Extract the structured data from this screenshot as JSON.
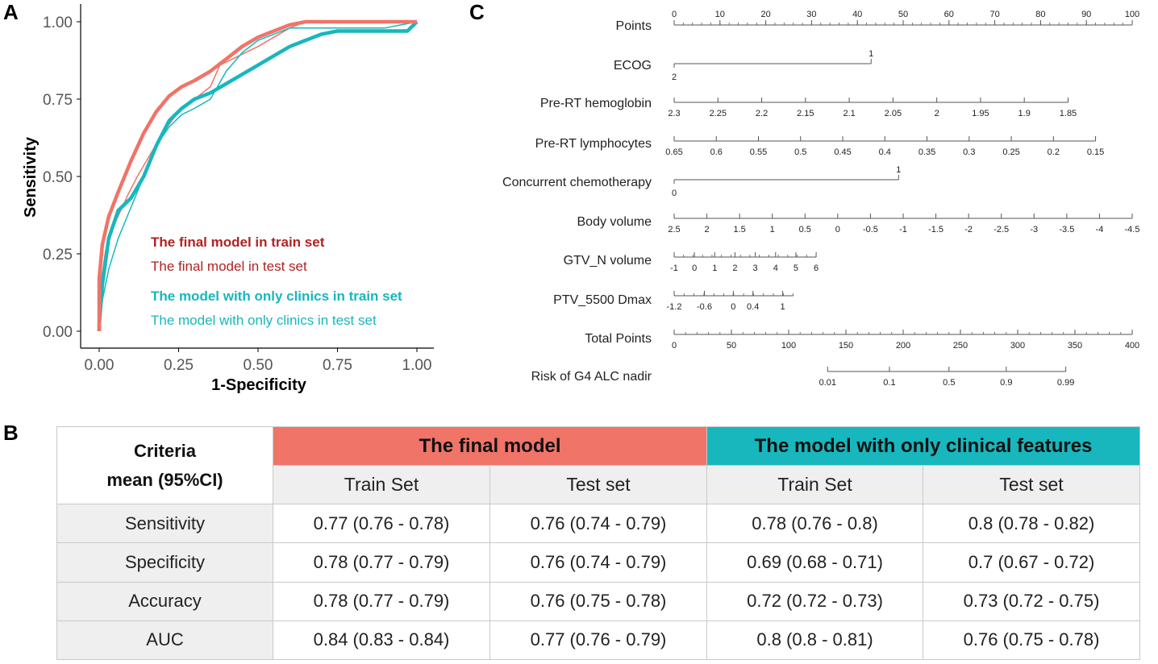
{
  "panel_labels": {
    "a": "A",
    "b": "B",
    "c": "C"
  },
  "colors": {
    "final": "#f07468",
    "clinical": "#17b7bd",
    "final_text": "#b22222",
    "clin_text": "#17b7bd",
    "final_header_bg": "#f07468",
    "clin_header_bg": "#17b7bd"
  },
  "chart_data": [
    {
      "type": "line",
      "title": "",
      "xlabel": "1-Specificity",
      "ylabel": "Sensitivity",
      "xlim": [
        0,
        1
      ],
      "ylim": [
        0,
        1
      ],
      "xticks": [
        "0.00",
        "0.25",
        "0.50",
        "0.75",
        "1.00"
      ],
      "yticks": [
        "0.00",
        "0.25",
        "0.50",
        "0.75",
        "1.00"
      ],
      "legend": [
        {
          "label": "The final model in train set",
          "color": "#b22222",
          "bold": true
        },
        {
          "label": "The final model  in test set",
          "color": "#b22222",
          "bold": false
        },
        {
          "label": "The model with only clinics in train set",
          "color": "#17b7bd",
          "bold": true
        },
        {
          "label": "The model with only clinics in test set",
          "color": "#17b7bd",
          "bold": false
        }
      ],
      "series": [
        {
          "name": "The final model in train set",
          "color": "#f07468",
          "weight": "thick",
          "x": [
            0,
            0,
            0.01,
            0.03,
            0.06,
            0.1,
            0.14,
            0.18,
            0.22,
            0.26,
            0.3,
            0.35,
            0.4,
            0.45,
            0.5,
            0.55,
            0.6,
            0.65,
            0.7,
            0.8,
            0.9,
            1.0
          ],
          "y": [
            0,
            0.17,
            0.28,
            0.37,
            0.45,
            0.55,
            0.64,
            0.71,
            0.76,
            0.79,
            0.81,
            0.84,
            0.88,
            0.92,
            0.95,
            0.97,
            0.99,
            1.0,
            1.0,
            1.0,
            1.0,
            1.0
          ]
        },
        {
          "name": "The final model  in test set",
          "color": "#f07468",
          "weight": "thin",
          "x": [
            0,
            0,
            0.02,
            0.05,
            0.09,
            0.12,
            0.16,
            0.2,
            0.25,
            0.3,
            0.35,
            0.38,
            0.42,
            0.5,
            0.55,
            0.6,
            0.65,
            0.7,
            0.8,
            0.9,
            1.0
          ],
          "y": [
            0,
            0.12,
            0.26,
            0.35,
            0.44,
            0.5,
            0.57,
            0.64,
            0.71,
            0.75,
            0.79,
            0.86,
            0.88,
            0.92,
            0.95,
            0.98,
            1.0,
            1.0,
            1.0,
            1.0,
            1.0
          ]
        },
        {
          "name": "The model with only clinics in train set",
          "color": "#17b7bd",
          "weight": "thick",
          "x": [
            0,
            0,
            0.01,
            0.03,
            0.06,
            0.1,
            0.14,
            0.18,
            0.22,
            0.26,
            0.3,
            0.35,
            0.4,
            0.45,
            0.5,
            0.55,
            0.6,
            0.65,
            0.7,
            0.75,
            0.8,
            0.9,
            0.97,
            1.0
          ],
          "y": [
            0,
            0.02,
            0.15,
            0.3,
            0.39,
            0.43,
            0.5,
            0.6,
            0.68,
            0.72,
            0.75,
            0.77,
            0.8,
            0.83,
            0.86,
            0.89,
            0.92,
            0.94,
            0.96,
            0.97,
            0.97,
            0.97,
            0.97,
            1.0
          ]
        },
        {
          "name": "The model with only clinics in test set",
          "color": "#17b7bd",
          "weight": "thin",
          "x": [
            0,
            0,
            0.01,
            0.03,
            0.06,
            0.1,
            0.14,
            0.18,
            0.22,
            0.26,
            0.3,
            0.35,
            0.4,
            0.45,
            0.5,
            0.55,
            0.6,
            0.65,
            0.7,
            0.75,
            0.8,
            0.9,
            1.0
          ],
          "y": [
            0,
            0.05,
            0.1,
            0.2,
            0.3,
            0.4,
            0.5,
            0.6,
            0.66,
            0.7,
            0.72,
            0.75,
            0.84,
            0.9,
            0.94,
            0.96,
            0.98,
            0.98,
            0.98,
            0.98,
            0.98,
            0.98,
            1.0
          ]
        }
      ]
    },
    {
      "type": "nomogram",
      "variables": [
        {
          "label": "Points",
          "points_from": 0,
          "points_to": 100,
          "major": [
            "0",
            "10",
            "20",
            "30",
            "40",
            "50",
            "60",
            "70",
            "80",
            "90",
            "100"
          ],
          "minor_every": 2,
          "labels_above": true
        },
        {
          "label": "ECOG",
          "points_from": 0,
          "points_to": 43,
          "ticks": [
            {
              "p": 43,
              "t": "1",
              "pos": "above"
            },
            {
              "p": 0,
              "t": "2",
              "pos": "below"
            }
          ]
        },
        {
          "label": "Pre-RT hemoglobin",
          "points_from": 0,
          "points_to": 86,
          "ticks": [
            {
              "p": 0,
              "t": "2.3"
            },
            {
              "p": 9.5556,
              "t": "2.25"
            },
            {
              "p": 19.1111,
              "t": "2.2"
            },
            {
              "p": 28.6667,
              "t": "2.15"
            },
            {
              "p": 38.2222,
              "t": "2.1"
            },
            {
              "p": 47.7778,
              "t": "2.05"
            },
            {
              "p": 57.3333,
              "t": "2"
            },
            {
              "p": 66.8889,
              "t": "1.95"
            },
            {
              "p": 76.4444,
              "t": "1.9"
            },
            {
              "p": 86,
              "t": "1.85"
            }
          ]
        },
        {
          "label": "Pre-RT lymphocytes",
          "points_from": 0,
          "points_to": 92,
          "ticks": [
            {
              "p": 0,
              "t": "0.65"
            },
            {
              "p": 9.2,
              "t": "0.6"
            },
            {
              "p": 18.4,
              "t": "0.55"
            },
            {
              "p": 27.6,
              "t": "0.5"
            },
            {
              "p": 36.8,
              "t": "0.45"
            },
            {
              "p": 46,
              "t": "0.4"
            },
            {
              "p": 55.2,
              "t": "0.35"
            },
            {
              "p": 64.4,
              "t": "0.3"
            },
            {
              "p": 73.6,
              "t": "0.25"
            },
            {
              "p": 82.8,
              "t": "0.2"
            },
            {
              "p": 92,
              "t": "0.15"
            }
          ]
        },
        {
          "label": "Concurrent chemotherapy",
          "points_from": 0,
          "points_to": 49,
          "ticks": [
            {
              "p": 49,
              "t": "1",
              "pos": "above"
            },
            {
              "p": 0,
              "t": "0",
              "pos": "below"
            }
          ]
        },
        {
          "label": "Body volume",
          "points_from": 0,
          "points_to": 100,
          "ticks": [
            {
              "p": 0,
              "t": "2.5"
            },
            {
              "p": 7.1429,
              "t": "2"
            },
            {
              "p": 14.2857,
              "t": "1.5"
            },
            {
              "p": 21.4286,
              "t": "1"
            },
            {
              "p": 28.5714,
              "t": "0.5"
            },
            {
              "p": 35.7143,
              "t": "0"
            },
            {
              "p": 42.8571,
              "t": "-0.5"
            },
            {
              "p": 50,
              "t": "-1"
            },
            {
              "p": 57.1429,
              "t": "-1.5"
            },
            {
              "p": 64.2857,
              "t": "-2"
            },
            {
              "p": 71.4286,
              "t": "-2.5"
            },
            {
              "p": 78.5714,
              "t": "-3"
            },
            {
              "p": 85.7143,
              "t": "-3.5"
            },
            {
              "p": 92.8571,
              "t": "-4"
            },
            {
              "p": 100,
              "t": "-4.5"
            }
          ]
        },
        {
          "label": "GTV_N volume",
          "points_from": 0,
          "points_to": 31,
          "minor_count": 15,
          "ticks": [
            {
              "p": 0,
              "t": "-1"
            },
            {
              "p": 4.4286,
              "t": "0"
            },
            {
              "p": 8.8571,
              "t": "1"
            },
            {
              "p": 13.2857,
              "t": "2"
            },
            {
              "p": 17.7143,
              "t": "3"
            },
            {
              "p": 22.1429,
              "t": "4"
            },
            {
              "p": 26.5714,
              "t": "5"
            },
            {
              "p": 31,
              "t": "6"
            }
          ]
        },
        {
          "label": "PTV_5500 Dmax",
          "points_from": 0,
          "points_to": 26,
          "minor_count": 12,
          "ticks": [
            {
              "p": 0,
              "t": "-1.2"
            },
            {
              "p": 6.6,
              "t": "-0.6"
            },
            {
              "p": 12.9,
              "t": "0"
            },
            {
              "p": 17.2,
              "t": "0.4"
            },
            {
              "p": 23.7,
              "t": "1"
            }
          ]
        },
        {
          "label": "Total Points",
          "points_from": 0,
          "points_to": 100,
          "major": [
            "0",
            "50",
            "100",
            "150",
            "200",
            "250",
            "300",
            "350",
            "400"
          ],
          "minor_count": 40
        },
        {
          "label": "Risk of G4 ALC nadir",
          "points_from": 33.5,
          "points_to": 85.5,
          "ticks": [
            {
              "p": 33.5,
              "t": "0.01"
            },
            {
              "p": 47,
              "t": "0.1"
            },
            {
              "p": 60,
              "t": "0.5"
            },
            {
              "p": 72.5,
              "t": "0.9"
            },
            {
              "p": 85.5,
              "t": "0.99"
            }
          ]
        }
      ]
    },
    {
      "type": "table",
      "header": {
        "criteria": "Criteria\nmean (95%CI)",
        "group_final": "The final model",
        "group_clinical": "The model with only clinical features"
      },
      "subheaders": [
        "Train Set",
        "Test set",
        "Train Set",
        "Test set"
      ],
      "rows": [
        {
          "label": "Sensitivity",
          "values": [
            "0.77 (0.76 - 0.78)",
            "0.76 (0.74 - 0.79)",
            "0.78 (0.76 - 0.8)",
            "0.8 (0.78 - 0.82)"
          ]
        },
        {
          "label": "Specificity",
          "values": [
            "0.78 (0.77 - 0.79)",
            "0.76 (0.74 - 0.79)",
            "0.69 (0.68 - 0.71)",
            "0.7 (0.67 - 0.72)"
          ]
        },
        {
          "label": "Accuracy",
          "values": [
            "0.78 (0.77 - 0.79)",
            "0.76 (0.75 - 0.78)",
            "0.72 (0.72 - 0.73)",
            "0.73 (0.72 - 0.75)"
          ]
        },
        {
          "label": "AUC",
          "values": [
            "0.84 (0.83 - 0.84)",
            "0.77 (0.76 - 0.79)",
            "0.8 (0.8 - 0.81)",
            "0.76 (0.75 - 0.78)"
          ]
        }
      ]
    }
  ]
}
